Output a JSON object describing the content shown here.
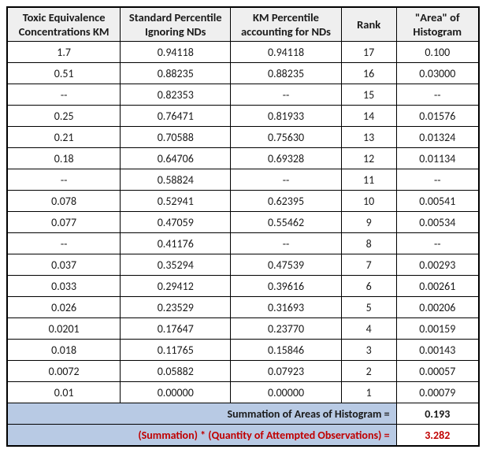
{
  "columns": [
    "Toxic Equivalence Concentrations KM",
    "Standard Percentile Ignoring NDs",
    "KM Percentile accounting for NDs",
    "Rank",
    "\"Area\" of Histogram"
  ],
  "rows": [
    [
      "1.7",
      "0.94118",
      "0.94118",
      "17",
      "0.100"
    ],
    [
      "0.51",
      "0.88235",
      "0.88235",
      "16",
      "0.03000"
    ],
    [
      "--",
      "0.82353",
      "--",
      "15",
      "--"
    ],
    [
      "0.25",
      "0.76471",
      "0.81933",
      "14",
      "0.01576"
    ],
    [
      "0.21",
      "0.70588",
      "0.75630",
      "13",
      "0.01324"
    ],
    [
      "0.18",
      "0.64706",
      "0.69328",
      "12",
      "0.01134"
    ],
    [
      "--",
      "0.58824",
      "--",
      "11",
      "--"
    ],
    [
      "0.078",
      "0.52941",
      "0.62395",
      "10",
      "0.00541"
    ],
    [
      "0.077",
      "0.47059",
      "0.55462",
      "9",
      "0.00534"
    ],
    [
      "--",
      "0.41176",
      "--",
      "8",
      "--"
    ],
    [
      "0.037",
      "0.35294",
      "0.47539",
      "7",
      "0.00293"
    ],
    [
      "0.033",
      "0.29412",
      "0.39616",
      "6",
      "0.00261"
    ],
    [
      "0.026",
      "0.23529",
      "0.31693",
      "5",
      "0.00206"
    ],
    [
      "0.0201",
      "0.17647",
      "0.23770",
      "4",
      "0.00159"
    ],
    [
      "0.018",
      "0.11765",
      "0.15846",
      "3",
      "0.00143"
    ],
    [
      "0.0072",
      "0.05882",
      "0.07923",
      "2",
      "0.00057"
    ],
    [
      "0.01",
      "0.00000",
      "0.00000",
      "1",
      "0.00079"
    ]
  ],
  "summary": {
    "line1_label": "Summation of Areas of Histogram =",
    "line1_value": "0.193",
    "line2_label": "(Summation) * (Quantity of Attempted Observations) =",
    "line2_value": "3.282"
  },
  "style": {
    "header_bg": "#efefef",
    "summary_bg": "#b8cae4",
    "red": "#c00000",
    "border": "#000000",
    "font": "Calibri",
    "font_size_header": 14.5,
    "font_size_body": 14
  }
}
